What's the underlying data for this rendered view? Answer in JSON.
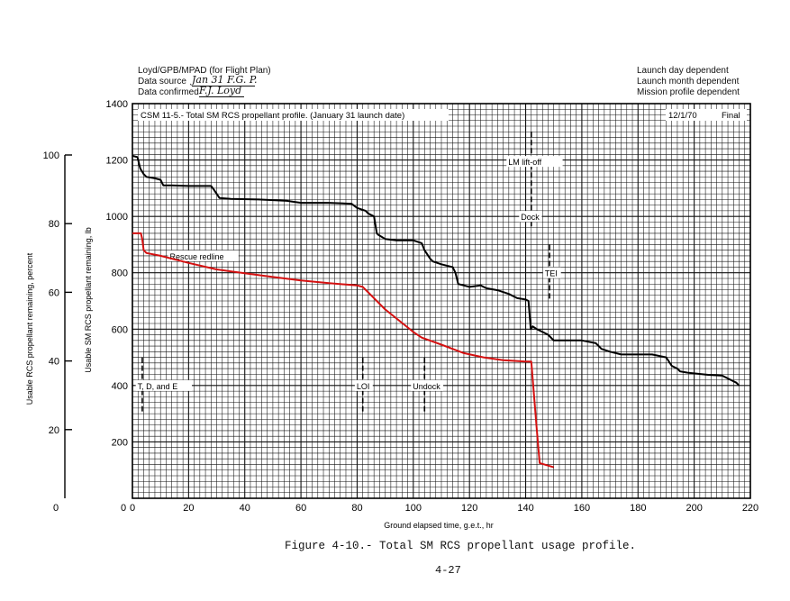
{
  "header": {
    "author": "Loyd/GPB/MPAD  (for Flight Plan)",
    "source_label": "Data source",
    "source_sig": "Jan 31 F.G. P.",
    "confirmed_label": "Data confirmed",
    "confirmed_sig": "F.J. Loyd",
    "dep_lines": [
      "Launch day dependent",
      "Launch month dependent",
      "Mission profile dependent"
    ]
  },
  "chart_data": {
    "type": "line",
    "title": "CSM 11-5.- Total SM RCS propellant profile.  (January 31 launch date)",
    "date_label": "12/1/70",
    "status_label": "Final",
    "xlabel": "Ground elapsed time, g.e.t., hr",
    "ylabel": "Usable SM RCS propellant remaining, lb",
    "ylabel2": "Usable RCS propellant remaining, percent",
    "xlim": [
      0,
      220
    ],
    "ylim": [
      0,
      1400
    ],
    "xticks": [
      "0",
      "20",
      "40",
      "60",
      "80",
      "100",
      "120",
      "140",
      "160",
      "180",
      "200",
      "220"
    ],
    "yticks": [
      "200",
      "400",
      "600",
      "800",
      "1000",
      "1200",
      "1400"
    ],
    "pct_ticks": [
      "0",
      "20",
      "40",
      "60",
      "80",
      "100"
    ],
    "grid": true,
    "series": [
      {
        "name": "",
        "color": "#000000",
        "points": [
          [
            0,
            1215
          ],
          [
            1.8,
            1210
          ],
          [
            2.8,
            1170
          ],
          [
            4,
            1150
          ],
          [
            5,
            1140
          ],
          [
            8,
            1135
          ],
          [
            10,
            1130
          ],
          [
            11,
            1110
          ],
          [
            14,
            1110
          ],
          [
            20,
            1108
          ],
          [
            28,
            1108
          ],
          [
            29,
            1095
          ],
          [
            30,
            1080
          ],
          [
            31,
            1065
          ],
          [
            35,
            1062
          ],
          [
            45,
            1060
          ],
          [
            55,
            1055
          ],
          [
            60,
            1048
          ],
          [
            70,
            1048
          ],
          [
            78,
            1045
          ],
          [
            80,
            1030
          ],
          [
            83,
            1020
          ],
          [
            84,
            1010
          ],
          [
            86,
            1000
          ],
          [
            87,
            940
          ],
          [
            87.5,
            935
          ],
          [
            90,
            920
          ],
          [
            94,
            915
          ],
          [
            100,
            915
          ],
          [
            103,
            905
          ],
          [
            104,
            880
          ],
          [
            106,
            850
          ],
          [
            107,
            840
          ],
          [
            110,
            830
          ],
          [
            114,
            820
          ],
          [
            115,
            800
          ],
          [
            116,
            760
          ],
          [
            120,
            750
          ],
          [
            124,
            755
          ],
          [
            126,
            745
          ],
          [
            130,
            738
          ],
          [
            134,
            725
          ],
          [
            137,
            710
          ],
          [
            140,
            705
          ],
          [
            141,
            700
          ],
          [
            141.8,
            600
          ],
          [
            142.5,
            610
          ],
          [
            144,
            600
          ],
          [
            146,
            590
          ],
          [
            148,
            580
          ],
          [
            150,
            560
          ],
          [
            160,
            560
          ],
          [
            165,
            550
          ],
          [
            166,
            540
          ],
          [
            167,
            530
          ],
          [
            170,
            520
          ],
          [
            174,
            510
          ],
          [
            180,
            510
          ],
          [
            185,
            510
          ],
          [
            190,
            500
          ],
          [
            192,
            470
          ],
          [
            194,
            460
          ],
          [
            195,
            450
          ],
          [
            198,
            445
          ],
          [
            205,
            438
          ],
          [
            210,
            435
          ],
          [
            213,
            420
          ],
          [
            215,
            410
          ],
          [
            216,
            400
          ]
        ]
      },
      {
        "name": "",
        "color": "#d41010",
        "points": [
          [
            0,
            940
          ],
          [
            3,
            940
          ],
          [
            3.5,
            920
          ],
          [
            4,
            880
          ],
          [
            5,
            870
          ],
          [
            10,
            860
          ],
          [
            20,
            835
          ],
          [
            30,
            812
          ],
          [
            40,
            798
          ],
          [
            50,
            785
          ],
          [
            60,
            773
          ],
          [
            70,
            763
          ],
          [
            80,
            755
          ],
          [
            82,
            750
          ],
          [
            85,
            720
          ],
          [
            90,
            670
          ],
          [
            95,
            630
          ],
          [
            100,
            590
          ],
          [
            103,
            570
          ],
          [
            110,
            545
          ],
          [
            118,
            515
          ],
          [
            125,
            500
          ],
          [
            132,
            490
          ],
          [
            140,
            485
          ],
          [
            142,
            485
          ],
          [
            144,
            240
          ],
          [
            145,
            125
          ],
          [
            150,
            110
          ]
        ]
      }
    ],
    "annotations": {
      "rescue_redline": "Rescue redline",
      "tde": "T, D, and E",
      "loi": "LOI",
      "undock": "Undock",
      "lm_liftoff": "LM lift-off",
      "dock": "Dock",
      "tei": "TEI"
    }
  },
  "caption": "Figure 4-10.- Total SM RCS propellant usage profile.",
  "page_number": "4-27"
}
